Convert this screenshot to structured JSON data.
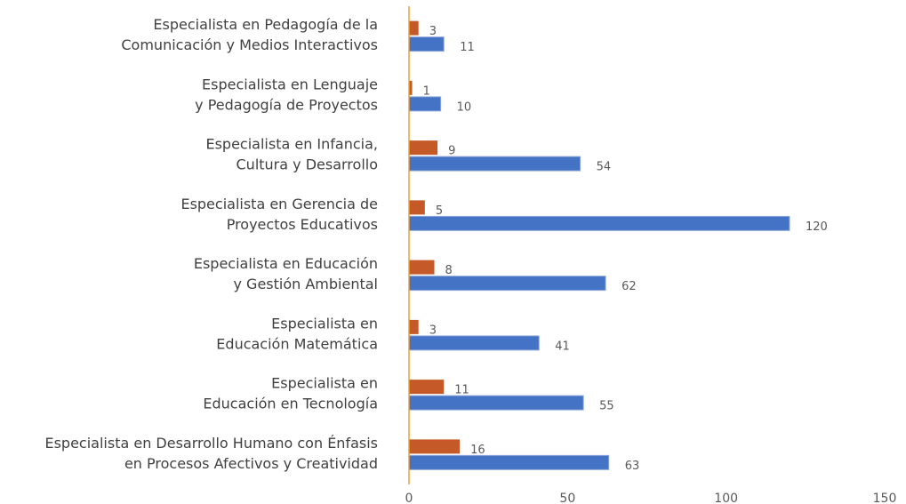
{
  "chart_data": {
    "type": "hbar",
    "categories": [
      [
        "Especialista en Pedagogía de la",
        "Comunicación y Medios Interactivos"
      ],
      [
        "Especialista en Lenguaje",
        "y Pedagogía de Proyectos"
      ],
      [
        "Especialista en Infancia,",
        "Cultura y Desarrollo"
      ],
      [
        "Especialista en Gerencia de",
        "Proyectos Educativos"
      ],
      [
        "Especialista en Educación",
        "y Gestión Ambiental"
      ],
      [
        "Especialista en",
        "Educación Matemática"
      ],
      [
        "Especialista en",
        "Educación en Tecnología"
      ],
      [
        "Especialista en Desarrollo Humano con Énfasis",
        "en Procesos Afectivos y Creatividad"
      ]
    ],
    "series": [
      {
        "color": "#c55a28",
        "values": [
          3,
          1,
          9,
          5,
          8,
          3,
          11,
          16
        ]
      },
      {
        "color": "#4472c4",
        "values": [
          11,
          10,
          54,
          120,
          62,
          41,
          55,
          63
        ]
      }
    ],
    "xlim": [
      0,
      150
    ],
    "xticks": [
      0,
      50,
      100,
      150
    ],
    "axis_color": "#f0a030",
    "grid": false
  }
}
